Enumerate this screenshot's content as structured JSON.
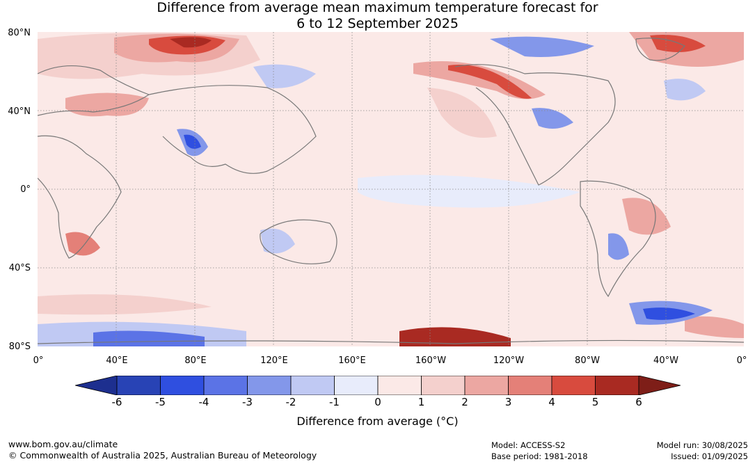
{
  "title_line1": "Difference from average mean maximum temperature forecast for",
  "title_line2": "6 to 12 September 2025",
  "lat_labels": [
    "80°N",
    "40°N",
    "0°",
    "40°S",
    "80°S"
  ],
  "lon_labels": [
    "0°",
    "40°E",
    "80°E",
    "120°E",
    "160°E",
    "160°W",
    "120°W",
    "80°W",
    "40°W",
    "0°"
  ],
  "colorbar": {
    "ticks": [
      "-6",
      "-5",
      "-4",
      "-3",
      "-2",
      "-1",
      "0",
      "1",
      "2",
      "3",
      "4",
      "5",
      "6"
    ],
    "colors": [
      "#1d2f8f",
      "#2843b5",
      "#2f4fe0",
      "#5b73e6",
      "#8397ea",
      "#c0c9f3",
      "#e8ecfb",
      "#fbe9e7",
      "#f4d0cd",
      "#eca7a2",
      "#e48078",
      "#d84b3e",
      "#a92a22",
      "#7e1e18"
    ],
    "label": "Difference from average (°C)"
  },
  "footer": {
    "url": "www.bom.gov.au/climate",
    "copyright": "© Commonwealth of Australia 2025, Australian Bureau of Meteorology",
    "model": "Model: ACCESS-S2",
    "base_period": "Base period: 1981-2018",
    "model_run": "Model run: 30/08/2025",
    "issued": "Issued: 01/09/2025"
  }
}
